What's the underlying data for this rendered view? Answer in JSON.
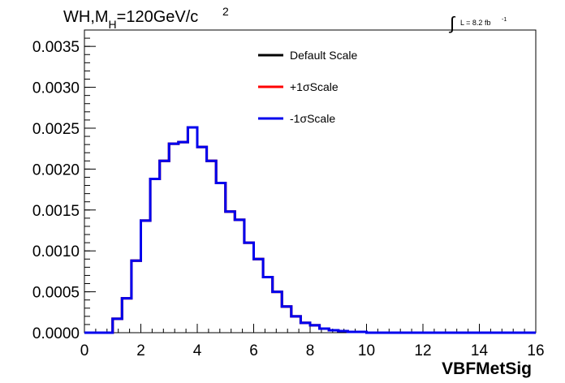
{
  "chart_data": {
    "type": "histogram",
    "title_prefix": "WH,M",
    "title_sub": "H",
    "title_suffix": "=120GeV/c",
    "title_sup": "2",
    "lumi_integral": "∫",
    "lumi_text": "L = 8.2 fb",
    "lumi_sup": "-1",
    "xlabel": "VBFMetSig",
    "ylabel": "",
    "xlim": [
      0,
      16
    ],
    "ylim": [
      0,
      0.0037
    ],
    "x_ticks": [
      "0",
      "2",
      "4",
      "6",
      "8",
      "10",
      "12",
      "14",
      "16"
    ],
    "y_ticks": [
      "0.0000",
      "0.0005",
      "0.0010",
      "0.0015",
      "0.0020",
      "0.0025",
      "0.0030",
      "0.0035"
    ],
    "bin_edges": [
      0,
      0.333,
      0.667,
      1.0,
      1.333,
      1.667,
      2.0,
      2.333,
      2.667,
      3.0,
      3.333,
      3.667,
      4.0,
      4.333,
      4.667,
      5.0,
      5.333,
      5.667,
      6.0,
      6.333,
      6.667,
      7.0,
      7.333,
      7.667,
      8.0,
      8.333,
      8.667,
      9.0,
      9.333,
      9.667,
      10.0,
      16.0
    ],
    "series": [
      {
        "name": "Default Scale",
        "color": "#000000",
        "values": [
          0,
          0,
          0,
          0.00017,
          0.00042,
          0.00088,
          0.00137,
          0.00188,
          0.0021,
          0.00231,
          0.00233,
          0.00251,
          0.00227,
          0.0021,
          0.00183,
          0.00148,
          0.00138,
          0.0011,
          0.0009,
          0.00068,
          0.0005,
          0.00032,
          0.0002,
          0.00012,
          9e-05,
          5e-05,
          3e-05,
          2e-05,
          1e-05,
          1e-05,
          0
        ]
      },
      {
        "name": "+1σScale",
        "color": "#ff0000",
        "values": [
          0,
          0,
          0,
          0.00017,
          0.00042,
          0.00088,
          0.00137,
          0.00188,
          0.0021,
          0.00231,
          0.00233,
          0.00251,
          0.00227,
          0.0021,
          0.00183,
          0.00148,
          0.00138,
          0.0011,
          0.0009,
          0.00068,
          0.0005,
          0.00032,
          0.0002,
          0.00012,
          9e-05,
          5e-05,
          3e-05,
          2e-05,
          1e-05,
          1e-05,
          0
        ]
      },
      {
        "name": "-1σScale",
        "color": "#0000ee",
        "values": [
          0,
          0,
          0,
          0.00017,
          0.00042,
          0.00088,
          0.00137,
          0.00188,
          0.0021,
          0.00231,
          0.00233,
          0.00251,
          0.00227,
          0.0021,
          0.00183,
          0.00148,
          0.00138,
          0.0011,
          0.0009,
          0.00068,
          0.0005,
          0.00032,
          0.0002,
          0.00012,
          9e-05,
          5e-05,
          3e-05,
          2e-05,
          1e-05,
          1e-05,
          0
        ]
      }
    ],
    "legend_placement": "top-center"
  }
}
